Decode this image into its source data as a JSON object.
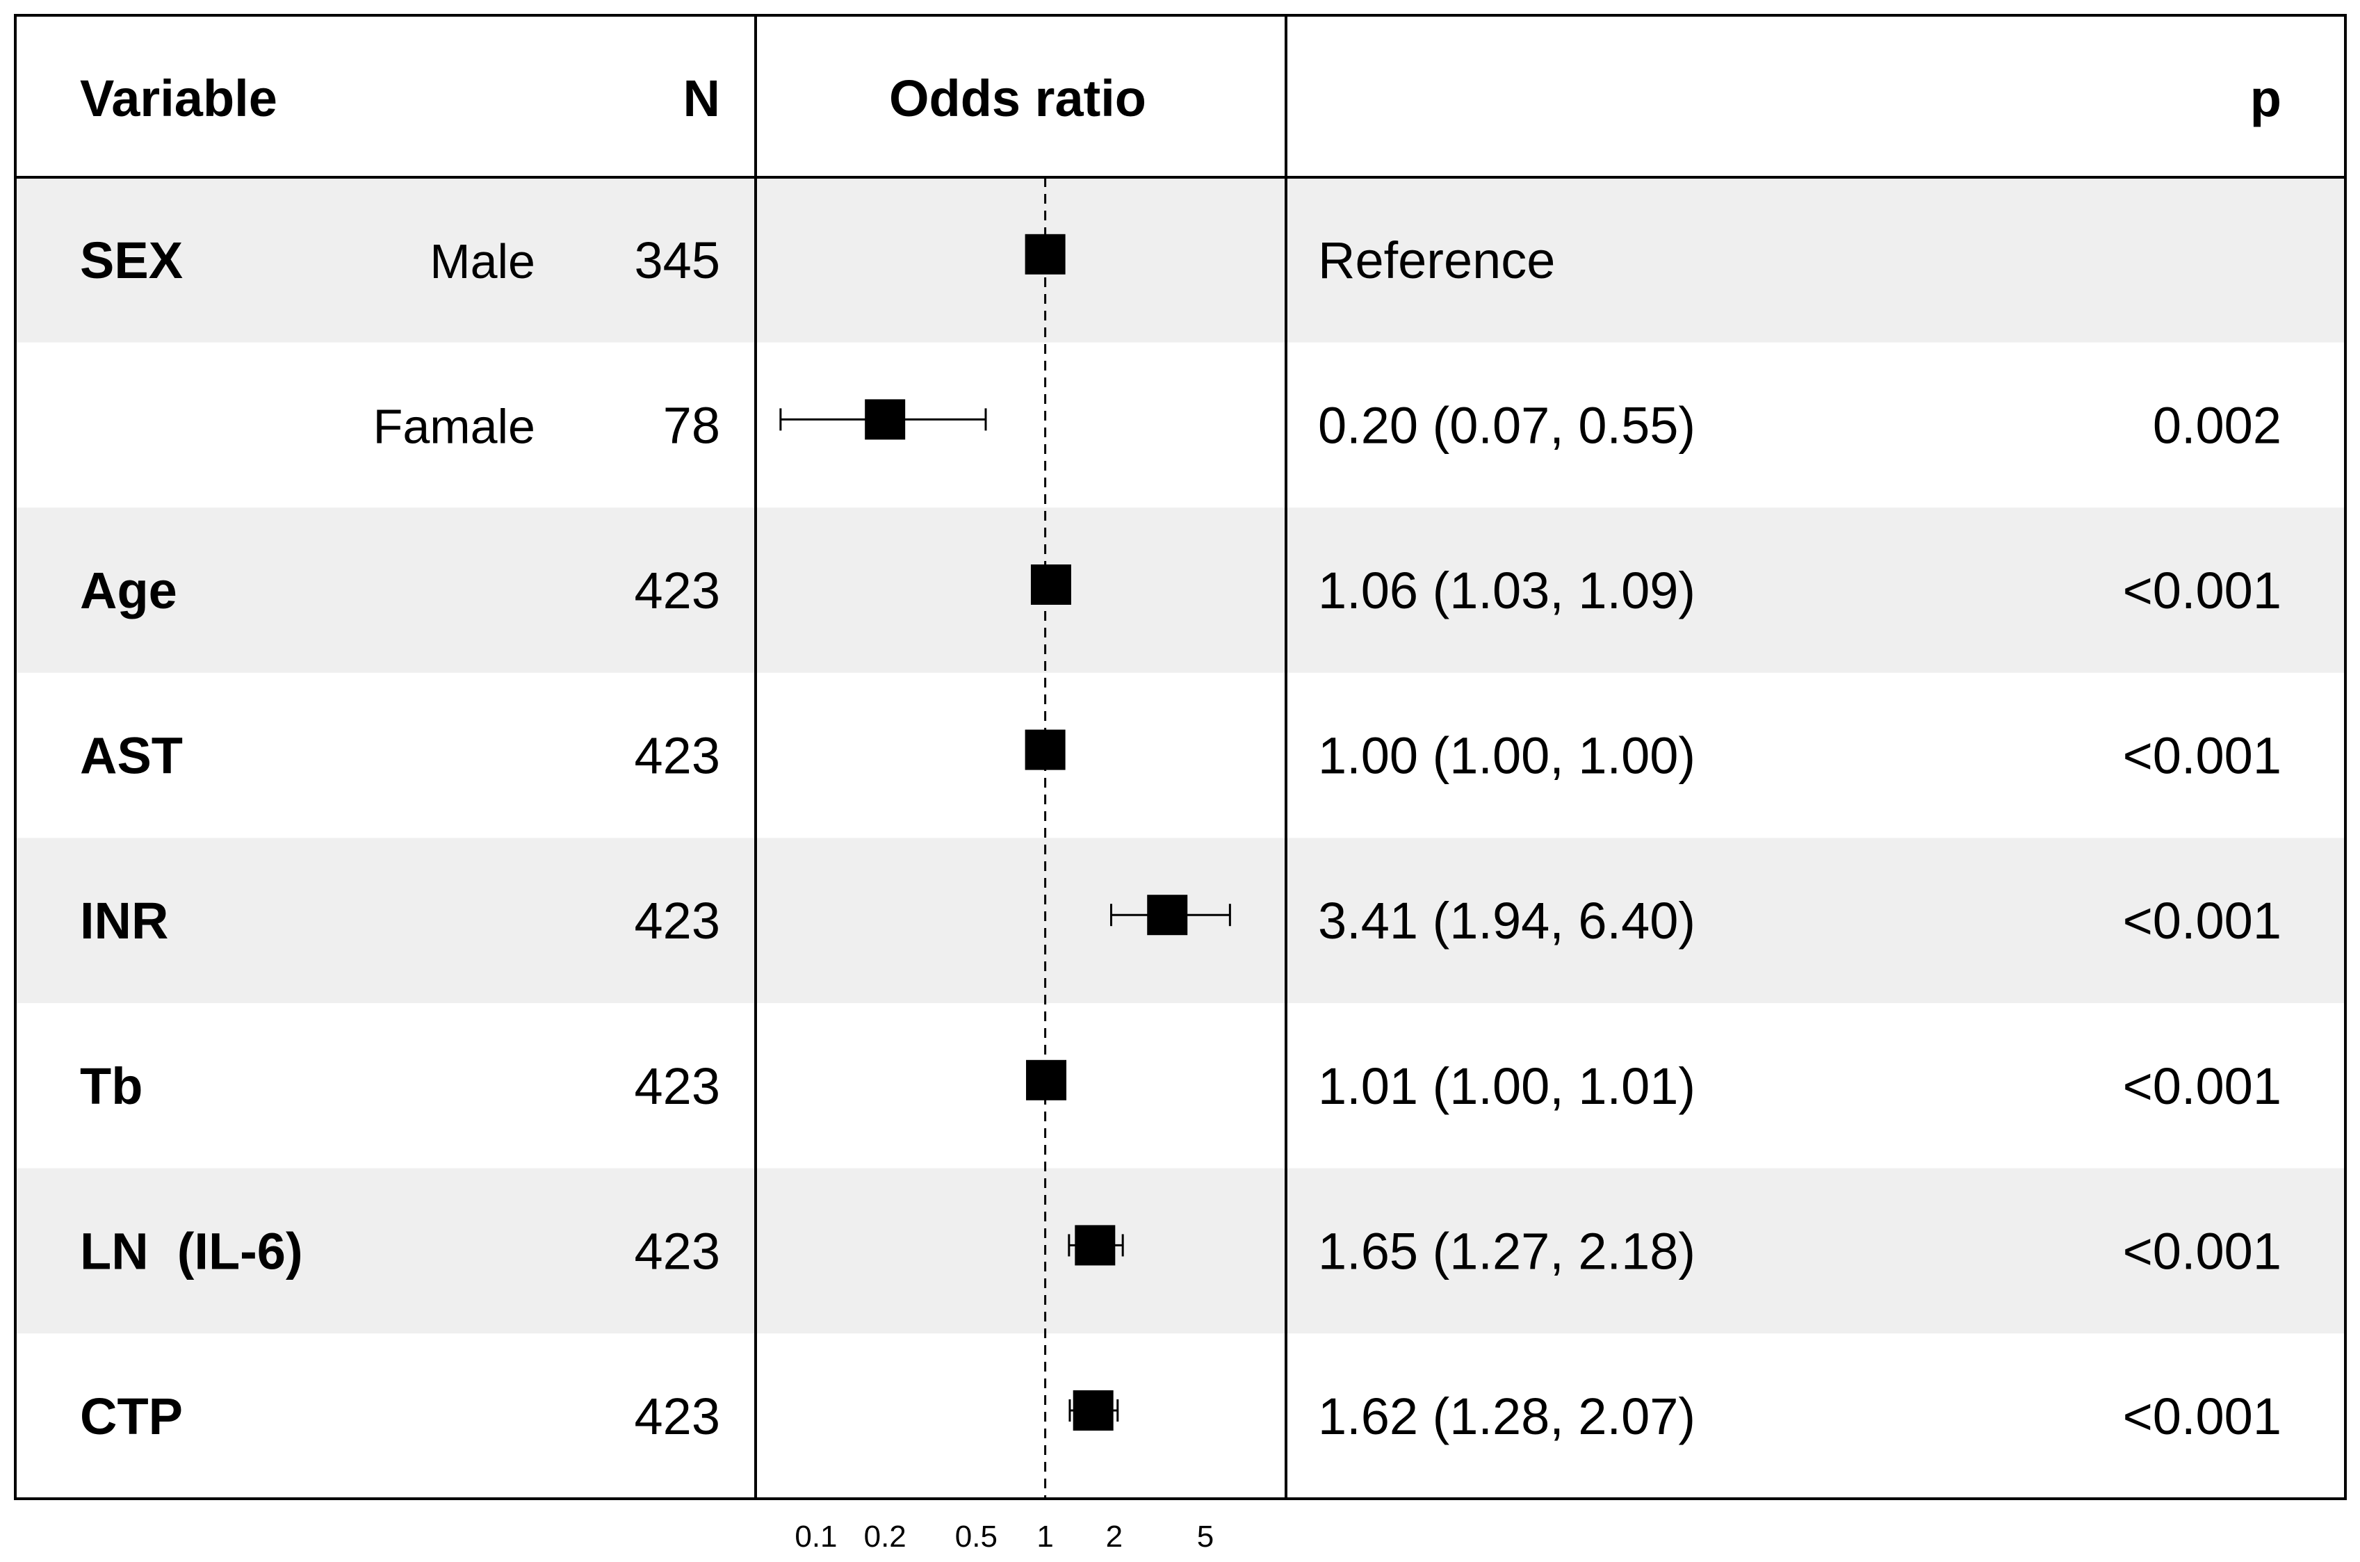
{
  "headers": {
    "variable": "Variable",
    "n": "N",
    "odds_ratio": "Odds ratio",
    "p": "p"
  },
  "chart_data": {
    "type": "forest",
    "x_scale": "log",
    "xlim": [
      0.08,
      8.5
    ],
    "reference_line": 1,
    "x_ticks": [
      0.1,
      0.2,
      0.5,
      1,
      2,
      5
    ],
    "x_tick_labels": [
      "0.1",
      "0.2",
      "0.5",
      "1",
      "2",
      "5"
    ],
    "rows": [
      {
        "variable": "SEX",
        "level": "Male",
        "n": "345",
        "or": 1.0,
        "lo": null,
        "hi": null,
        "estimate": "Reference",
        "p": ""
      },
      {
        "variable": "",
        "level": "Famale",
        "n": "78",
        "or": 0.2,
        "lo": 0.07,
        "hi": 0.55,
        "estimate": "0.20 (0.07, 0.55)",
        "p": "0.002"
      },
      {
        "variable": "Age",
        "level": "",
        "n": "423",
        "or": 1.06,
        "lo": 1.03,
        "hi": 1.09,
        "estimate": "1.06 (1.03, 1.09)",
        "p": "<0.001"
      },
      {
        "variable": "AST",
        "level": "",
        "n": "423",
        "or": 1.0,
        "lo": 1.0,
        "hi": 1.0,
        "estimate": "1.00 (1.00, 1.00)",
        "p": "<0.001"
      },
      {
        "variable": "INR",
        "level": "",
        "n": "423",
        "or": 3.41,
        "lo": 1.94,
        "hi": 6.4,
        "estimate": "3.41 (1.94, 6.40)",
        "p": "<0.001"
      },
      {
        "variable": "Tb",
        "level": "",
        "n": "423",
        "or": 1.01,
        "lo": 1.0,
        "hi": 1.01,
        "estimate": "1.01 (1.00, 1.01)",
        "p": "<0.001"
      },
      {
        "variable": "LN  (IL-6)",
        "level": "",
        "n": "423",
        "or": 1.65,
        "lo": 1.27,
        "hi": 2.18,
        "estimate": "1.65 (1.27, 2.18)",
        "p": "<0.001"
      },
      {
        "variable": "CTP",
        "level": "",
        "n": "423",
        "or": 1.62,
        "lo": 1.28,
        "hi": 2.07,
        "estimate": "1.62 (1.28, 2.07)",
        "p": "<0.001"
      }
    ]
  },
  "colors": {
    "band": "#efefef",
    "background": "#ffffff",
    "ink": "#000000"
  }
}
